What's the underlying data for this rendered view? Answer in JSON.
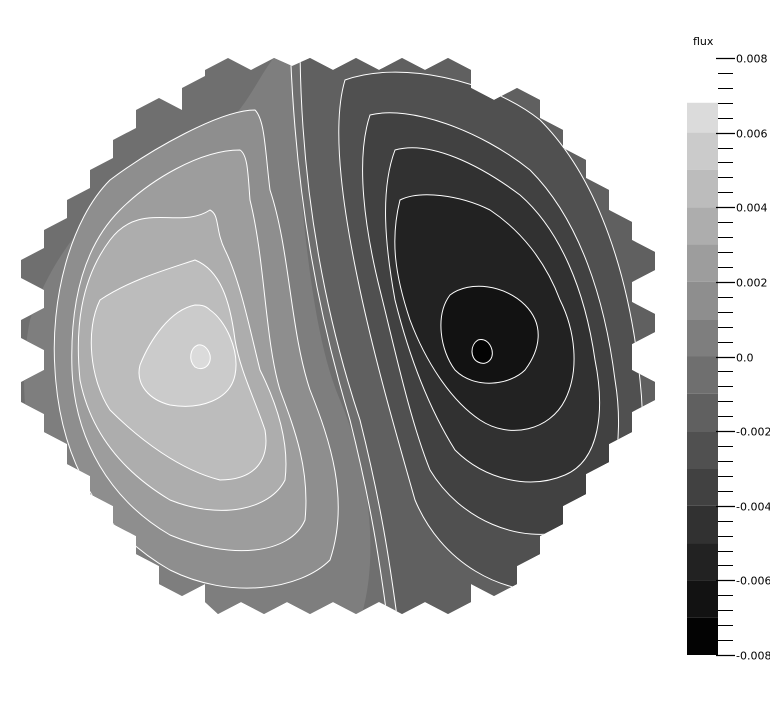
{
  "chart_data": {
    "type": "heatmap",
    "subtype": "filled-contour",
    "colorbar": {
      "title": "flux",
      "range": [
        -0.008,
        0.008
      ],
      "ticks": [
        "0.008",
        "0.006",
        "0.004",
        "0.002",
        "0.0",
        "-0.002",
        "-0.004",
        "-0.006",
        "-0.008"
      ],
      "levels": [
        0.008,
        0.007,
        0.006,
        0.005,
        0.004,
        0.003,
        0.002,
        0.001,
        0.0,
        -0.001,
        -0.002,
        -0.003,
        -0.004,
        -0.005,
        -0.006,
        -0.007,
        -0.008
      ],
      "colors": [
        "#ebebeb",
        "#dbdbdb",
        "#cbcbcb",
        "#bcbcbc",
        "#adadad",
        "#9d9d9d",
        "#8e8e8e",
        "#7e7e7e",
        "#6f6f6f",
        "#606060",
        "#505050",
        "#414141",
        "#313131",
        "#222222",
        "#121212",
        "#030303"
      ]
    },
    "field": {
      "shape": "hexagonal core cross-section",
      "positive_lobe_peak": 0.0055,
      "negative_lobe_peak": -0.0075,
      "contour_lines": "white"
    }
  }
}
